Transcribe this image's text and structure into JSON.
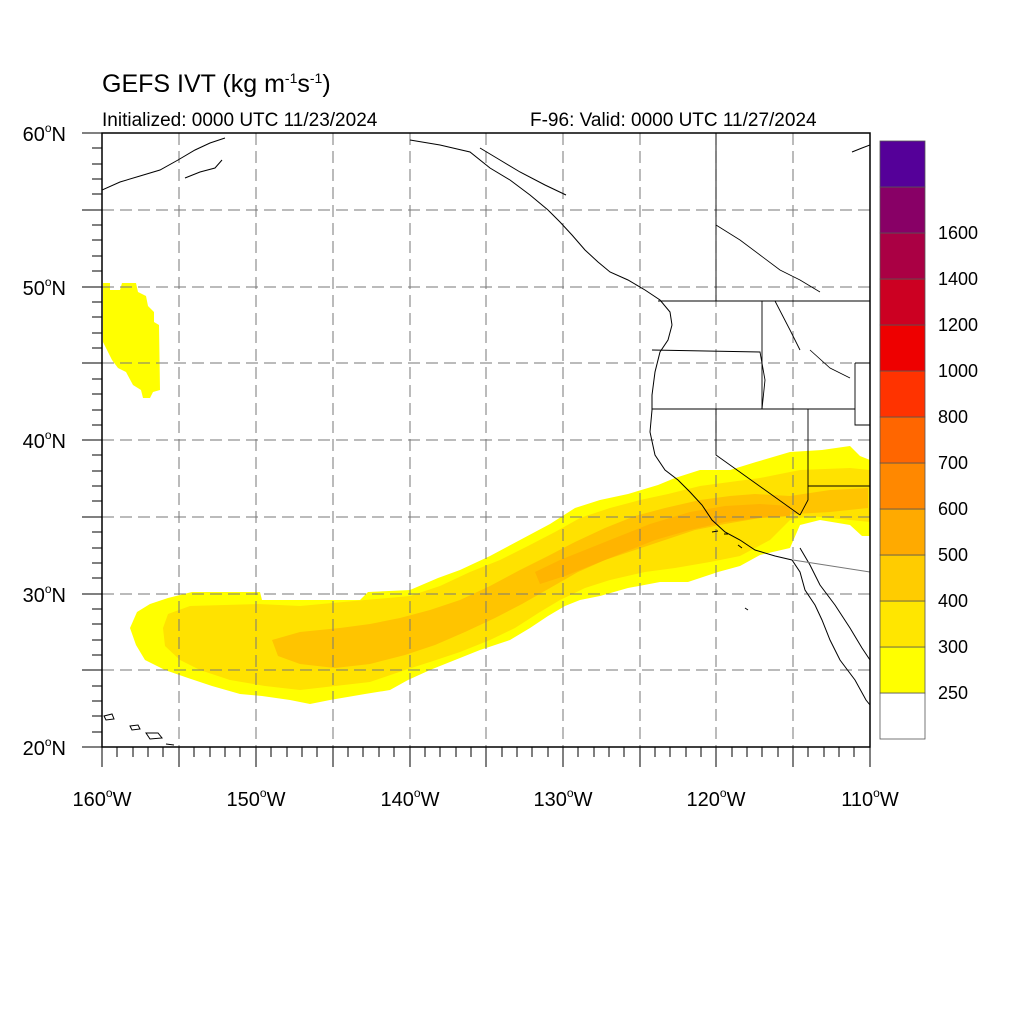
{
  "header": {
    "title_prefix": "GEFS IVT (kg m",
    "title_exp1": "-1",
    "title_mid": "s",
    "title_exp2": "-1",
    "title_suffix": ")",
    "initialized": "Initialized: 0000 UTC 11/23/2024",
    "valid": "F-96: Valid: 0000 UTC 11/27/2024"
  },
  "map": {
    "lon_range": [
      -160,
      -110
    ],
    "lat_range": [
      20,
      60
    ],
    "lon_ticks": [
      {
        "value": -160,
        "label": "160",
        "suffix": "W"
      },
      {
        "value": -150,
        "label": "150",
        "suffix": "W"
      },
      {
        "value": -140,
        "label": "140",
        "suffix": "W"
      },
      {
        "value": -130,
        "label": "130",
        "suffix": "W"
      },
      {
        "value": -120,
        "label": "120",
        "suffix": "W"
      },
      {
        "value": -110,
        "label": "110",
        "suffix": "W"
      }
    ],
    "lat_ticks": [
      {
        "value": 60,
        "label": "60",
        "suffix": "N"
      },
      {
        "value": 50,
        "label": "50",
        "suffix": "N"
      },
      {
        "value": 40,
        "label": "40",
        "suffix": "N"
      },
      {
        "value": 30,
        "label": "30",
        "suffix": "N"
      },
      {
        "value": 20,
        "label": "20",
        "suffix": "N"
      }
    ],
    "gridlines": "dashed, every 5 degrees"
  },
  "colorbar": {
    "levels": [
      {
        "label": "250",
        "color": "#ffff00"
      },
      {
        "label": "300",
        "color": "#ffe600"
      },
      {
        "label": "400",
        "color": "#ffcc00"
      },
      {
        "label": "500",
        "color": "#ffaa00"
      },
      {
        "label": "600",
        "color": "#ff8800"
      },
      {
        "label": "700",
        "color": "#ff6600"
      },
      {
        "label": "800",
        "color": "#ff3300"
      },
      {
        "label": "1000",
        "color": "#ee0000"
      },
      {
        "label": "1200",
        "color": "#cc0022"
      },
      {
        "label": "1400",
        "color": "#aa0044"
      },
      {
        "label": "1600",
        "color": "#880066"
      }
    ],
    "top_color": "#550099",
    "bottom_color": "#ffffff"
  }
}
